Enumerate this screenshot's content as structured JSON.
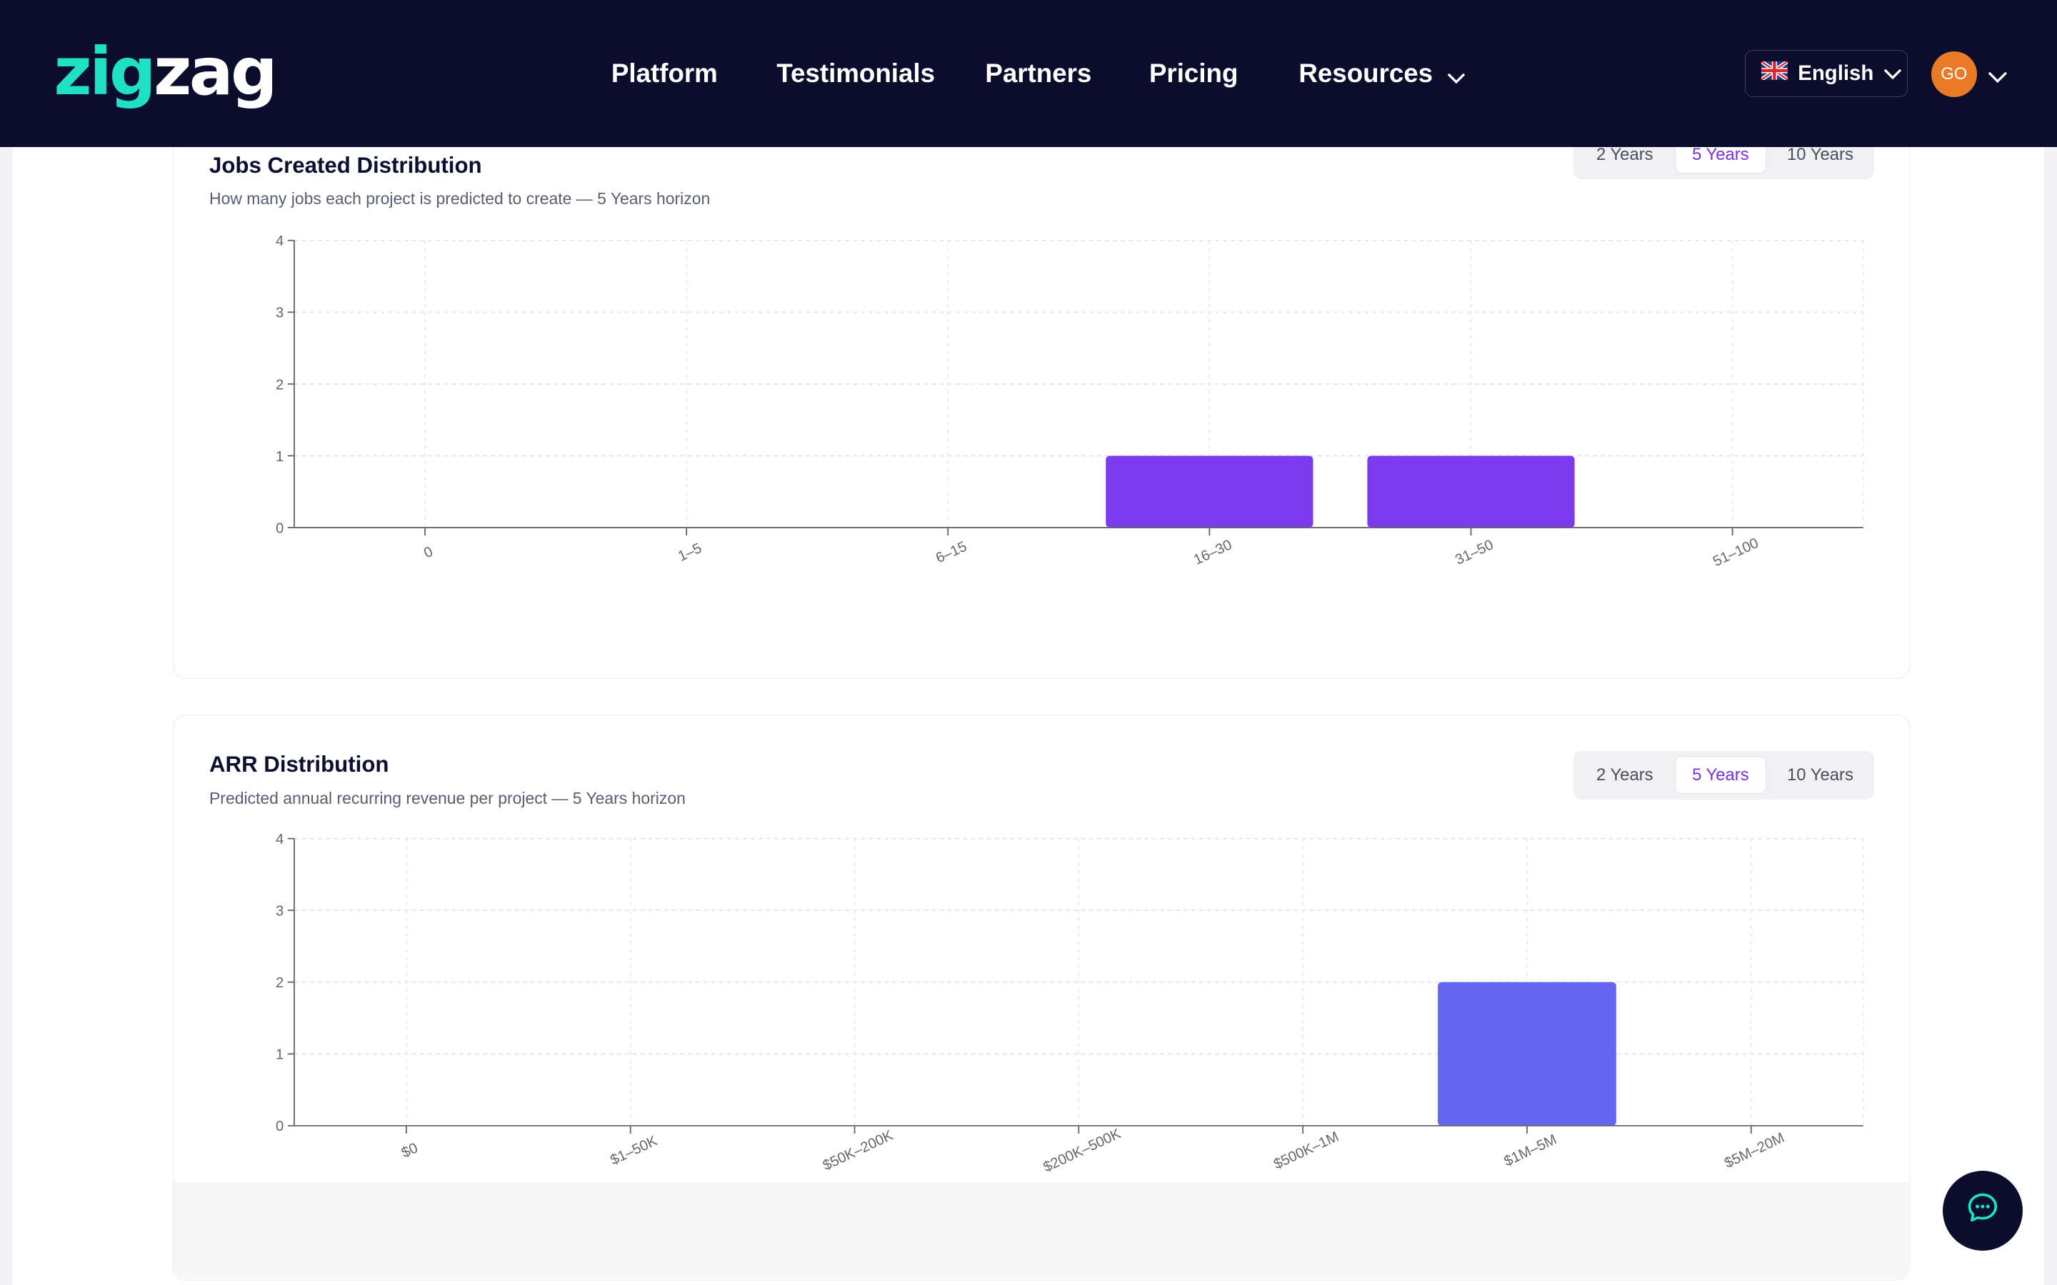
{
  "header": {
    "logo": {
      "part1": "zig",
      "part2": "zag"
    },
    "nav": [
      {
        "label": "Platform"
      },
      {
        "label": "Testimonials"
      },
      {
        "label": "Partners"
      },
      {
        "label": "Pricing"
      },
      {
        "label": "Resources",
        "has_dropdown": true,
        "icon": "chevron-down-icon"
      }
    ],
    "language": {
      "label": "English",
      "flag": "uk-flag-icon"
    },
    "avatar": {
      "initials": "GO"
    }
  },
  "colors": {
    "header_bg": "#0b0d2c",
    "brand_teal": "#1ee0c3",
    "accent_purple": "#7c3aed",
    "bar_indigo": "#6366f1",
    "avatar_orange": "#ea7a26"
  },
  "cards": [
    {
      "title": "Jobs Created Distribution",
      "subtitle": "How many jobs each project is predicted to create — 5 Years horizon",
      "tabs": [
        {
          "label": "2 Years",
          "active": false
        },
        {
          "label": "5 Years",
          "active": true
        },
        {
          "label": "10 Years",
          "active": false
        }
      ]
    },
    {
      "title": "ARR Distribution",
      "subtitle": "Predicted annual recurring revenue per project — 5 Years horizon",
      "tabs": [
        {
          "label": "2 Years",
          "active": false
        },
        {
          "label": "5 Years",
          "active": true
        },
        {
          "label": "10 Years",
          "active": false
        }
      ]
    }
  ],
  "chart_data": [
    {
      "type": "bar",
      "title": "Jobs Created Distribution",
      "categories": [
        "0",
        "1–5",
        "6–15",
        "16–30",
        "31–50",
        "51–100"
      ],
      "values": [
        0,
        0,
        0,
        1,
        1,
        0
      ],
      "ylim": [
        0,
        4
      ],
      "yticks": [
        0,
        1,
        2,
        3,
        4
      ],
      "grid": true,
      "bar_color": "#7c3aed"
    },
    {
      "type": "bar",
      "title": "ARR Distribution",
      "categories": [
        "$0",
        "$1–50K",
        "$50K–200K",
        "$200K–500K",
        "$500K–1M",
        "$1M–5M",
        "$5M–20M"
      ],
      "values": [
        0,
        0,
        0,
        0,
        0,
        2,
        0
      ],
      "ylim": [
        0,
        4
      ],
      "yticks": [
        0,
        1,
        2,
        3,
        4
      ],
      "grid": true,
      "bar_color": "#6366f1"
    }
  ],
  "chat": {
    "icon": "chat-bubble-icon"
  }
}
